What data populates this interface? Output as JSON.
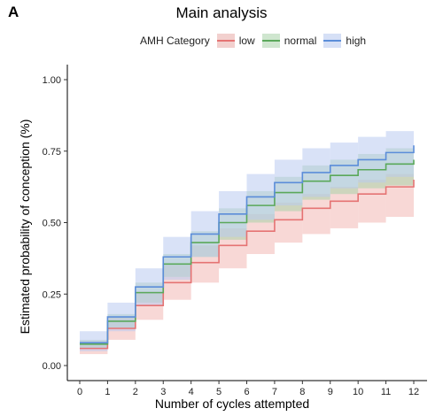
{
  "panel_label": "A",
  "chart_data": {
    "type": "line",
    "step": true,
    "title": "Main analysis",
    "xlabel": "Number of cycles attempted",
    "ylabel": "Estimated probability of conception (%)",
    "xlim": [
      0,
      12
    ],
    "ylim": [
      0,
      1
    ],
    "x_ticks": [
      "0",
      "1",
      "2",
      "3",
      "4",
      "5",
      "6",
      "7",
      "8",
      "9",
      "10",
      "11",
      "12"
    ],
    "y_ticks": [
      "0.00",
      "0.25",
      "0.50",
      "0.75",
      "1.00"
    ],
    "y_tick_values": [
      0,
      0.25,
      0.5,
      0.75,
      1.0
    ],
    "grid": false,
    "legend": {
      "title": "AMH Category",
      "position": "top"
    },
    "x": [
      0,
      1,
      2,
      3,
      4,
      5,
      6,
      7,
      8,
      9,
      10,
      11,
      12
    ],
    "series": [
      {
        "name": "low",
        "color": "#e57373",
        "fill": "#f2b8b5",
        "values": [
          0.06,
          0.13,
          0.21,
          0.29,
          0.36,
          0.42,
          0.47,
          0.51,
          0.55,
          0.575,
          0.6,
          0.625,
          0.65
        ],
        "lower": [
          0.04,
          0.09,
          0.16,
          0.23,
          0.29,
          0.34,
          0.39,
          0.43,
          0.46,
          0.48,
          0.5,
          0.52,
          0.54
        ],
        "upper": [
          0.085,
          0.17,
          0.26,
          0.35,
          0.42,
          0.48,
          0.53,
          0.57,
          0.6,
          0.625,
          0.65,
          0.67,
          0.7
        ]
      },
      {
        "name": "normal",
        "color": "#5aa85a",
        "fill": "#a9d4a9",
        "values": [
          0.075,
          0.155,
          0.255,
          0.355,
          0.43,
          0.5,
          0.56,
          0.605,
          0.645,
          0.665,
          0.685,
          0.705,
          0.72
        ],
        "lower": [
          0.06,
          0.13,
          0.22,
          0.31,
          0.38,
          0.44,
          0.5,
          0.54,
          0.58,
          0.6,
          0.62,
          0.63,
          0.65
        ],
        "upper": [
          0.09,
          0.18,
          0.29,
          0.39,
          0.47,
          0.55,
          0.61,
          0.66,
          0.7,
          0.72,
          0.74,
          0.76,
          0.78
        ]
      },
      {
        "name": "high",
        "color": "#5b8dd9",
        "fill": "#b9caf0",
        "values": [
          0.08,
          0.17,
          0.275,
          0.38,
          0.46,
          0.53,
          0.59,
          0.64,
          0.675,
          0.7,
          0.72,
          0.745,
          0.77
        ],
        "lower": [
          0.05,
          0.12,
          0.21,
          0.3,
          0.38,
          0.45,
          0.51,
          0.56,
          0.59,
          0.62,
          0.64,
          0.66,
          0.68
        ],
        "upper": [
          0.12,
          0.22,
          0.34,
          0.45,
          0.54,
          0.61,
          0.67,
          0.72,
          0.76,
          0.78,
          0.8,
          0.82,
          0.83
        ]
      }
    ]
  }
}
